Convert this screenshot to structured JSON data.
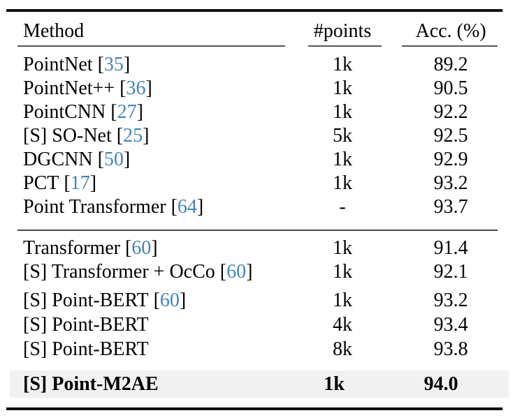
{
  "colors": {
    "citation_link": "#4183c4",
    "highlight_row_bg": "#f1f1f1",
    "thick_rule": "#111111",
    "thin_rule": "#555555"
  },
  "table": {
    "columns": {
      "method": "Method",
      "points": "#points",
      "acc": "Acc. (%)"
    },
    "rows": [
      {
        "method": "PointNet",
        "cite_open": "[",
        "cite": "35",
        "cite_close": "]",
        "points": "1k",
        "acc": "89.2"
      },
      {
        "method": "PointNet++",
        "cite_open": "[",
        "cite": "36",
        "cite_close": "]",
        "points": "1k",
        "acc": "90.5"
      },
      {
        "method": "PointCNN",
        "cite_open": "[",
        "cite": "27",
        "cite_close": "]",
        "points": "1k",
        "acc": "92.2"
      },
      {
        "method": "[S] SO-Net",
        "cite_open": "[",
        "cite": "25",
        "cite_close": "]",
        "points": "5k",
        "acc": "92.5"
      },
      {
        "method": "DGCNN",
        "cite_open": "[",
        "cite": "50",
        "cite_close": "]",
        "points": "1k",
        "acc": "92.9"
      },
      {
        "method": "PCT",
        "cite_open": "[",
        "cite": "17",
        "cite_close": "]",
        "points": "1k",
        "acc": "93.2"
      },
      {
        "method": "Point Transformer",
        "cite_open": "[",
        "cite": "64",
        "cite_close": "]",
        "points": "-",
        "acc": "93.7"
      },
      {
        "method": "Transformer",
        "cite_open": "[",
        "cite": "60",
        "cite_close": "]",
        "points": "1k",
        "acc": "91.4"
      },
      {
        "method": "[S] Transformer + OcCo",
        "cite_open": "[",
        "cite": "60",
        "cite_close": "]",
        "points": "1k",
        "acc": "92.1"
      },
      {
        "method": "[S] Point-BERT",
        "cite_open": "[",
        "cite": "60",
        "cite_close": "]",
        "points": "1k",
        "acc": "93.2"
      },
      {
        "method": "[S] Point-BERT",
        "points": "4k",
        "acc": "93.4"
      },
      {
        "method": "[S] Point-BERT",
        "points": "8k",
        "acc": "93.8"
      },
      {
        "method": "[S] Point-M2AE",
        "points": "1k",
        "acc": "94.0"
      }
    ]
  }
}
